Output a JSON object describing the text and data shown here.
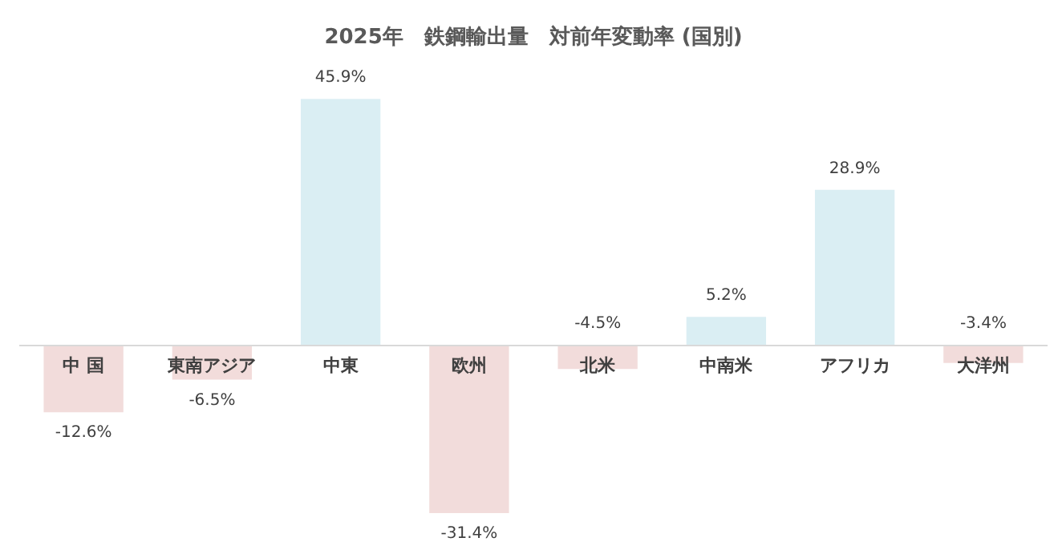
{
  "chart_data": {
    "type": "bar",
    "title": "2025年　鉄鋼輸出量　対前年変動率 (国別)",
    "categories": [
      "中 国",
      "東南アジア",
      "中東",
      "欧州",
      "北米",
      "中南米",
      "アフリカ",
      "大洋州"
    ],
    "values": [
      -12.6,
      -6.5,
      45.9,
      -31.4,
      -4.5,
      5.2,
      28.9,
      -3.4
    ],
    "colors": [
      "#f2dcdb",
      "#f2dcdb",
      "#daeef3",
      "#f2dcdb",
      "#f2dcdb",
      "#daeef3",
      "#daeef3",
      "#f2dcdb"
    ],
    "value_labels": [
      "-12.6%",
      "-6.5%",
      "45.9%",
      "-31.4%",
      "-4.5%",
      "5.2%",
      "28.9%",
      "-3.4%"
    ],
    "legend": false
  }
}
